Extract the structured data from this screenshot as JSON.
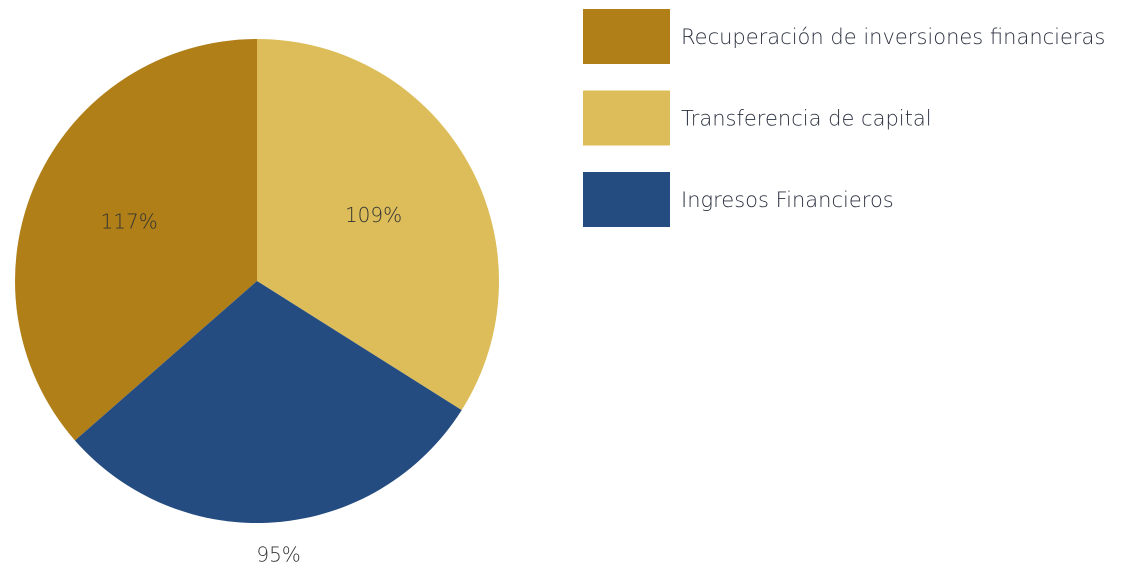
{
  "chart_data": {
    "type": "pie",
    "categories": [
      "Recuperación de inversiones financieras",
      "Transferencia de capital",
      "Ingresos Financieros"
    ],
    "values": [
      117,
      109,
      95
    ],
    "value_labels": [
      "117%",
      "109%",
      "95%"
    ],
    "colors": [
      "#b07f18",
      "#dcbd5a",
      "#244c80"
    ],
    "legend": "right"
  }
}
